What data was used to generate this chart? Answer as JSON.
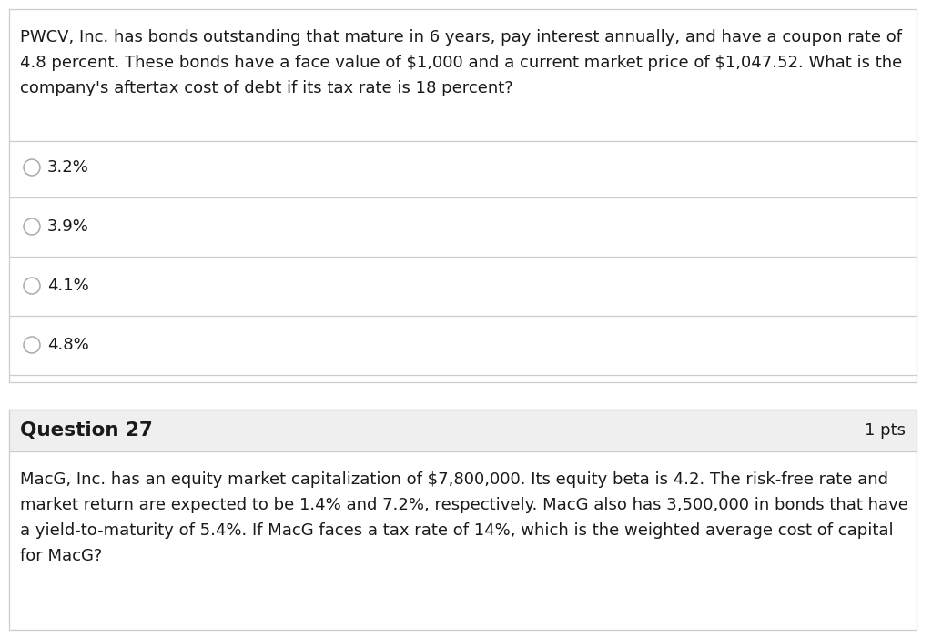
{
  "bg_color": "#ffffff",
  "border_color": "#cccccc",
  "question_header_bg": "#efefef",
  "text_color": "#1a1a1a",
  "line_color": "#cccccc",
  "question26_line1": "PWCV, Inc. has bonds outstanding that mature in 6 years, pay interest annually, and have a coupon rate of",
  "question26_line2": "4.8 percent. These bonds have a face value of \\$1,000 and a current market price of \\$1,047.52. What is the",
  "question26_line3": "company's aftertax cost of debt if its tax rate is 18 percent?",
  "options": [
    "3.2%",
    "3.9%",
    "4.1%",
    "4.8%"
  ],
  "question27_label": "Question 27",
  "question27_pts": "1 pts",
  "question27_line1": "MacG, Inc. has an equity market capitalization of \\$7,800,000. Its equity beta is 4.2. The risk-free rate and",
  "question27_line2": "market return are expected to be 1.4% and 7.2%, respectively. MacG also has 3,500,000 in bonds that have",
  "question27_line3": "a yield-to-maturity of 5.4%. If MacG faces a tax rate of 14%, which is the weighted average cost of capital",
  "question27_line4": "for MacG?",
  "font_size_body": 13.0,
  "font_size_option": 13.0,
  "font_size_header": 15.5,
  "font_size_pts": 13.0
}
